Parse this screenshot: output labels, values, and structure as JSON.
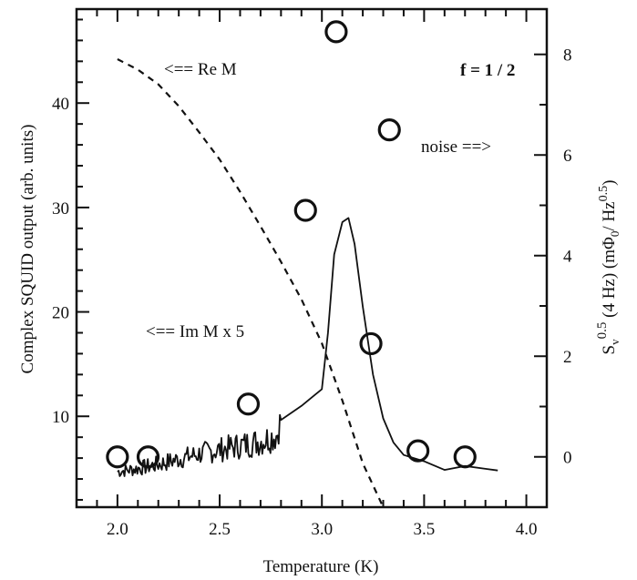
{
  "chart_data": {
    "type": "line",
    "xlabel": "Temperature   (K)",
    "ylabel_left": "Complex SQUID output (arb. units)",
    "ylabel_right": "S",
    "ylabel_right_parts": {
      "base": "S",
      "sub": "v",
      "sup": "0.5",
      "rest": "(4 Hz)  (m",
      "phi": "Φ",
      "phi_sub": "0",
      "slash": "/ Hz",
      "hz_sup": "0.5",
      "close": ")"
    },
    "xlim": [
      1.8,
      4.1
    ],
    "ylim_left": [
      1.3,
      49
    ],
    "ylim_right": [
      -1.0,
      8.9
    ],
    "x_ticks": [
      2.0,
      2.5,
      3.0,
      3.5,
      4.0
    ],
    "x_tick_labels": [
      "2.0",
      "2.5",
      "3.0",
      "3.5",
      "4.0"
    ],
    "y_left_ticks": [
      10,
      20,
      30,
      40
    ],
    "y_left_tick_labels": [
      "10",
      "20",
      "30",
      "40"
    ],
    "y_right_ticks": [
      0,
      2,
      4,
      6,
      8
    ],
    "y_right_tick_labels": [
      "0",
      "2",
      "4",
      "6",
      "8"
    ],
    "annotations": {
      "re_m": "<== Re M",
      "im_m": "<== Im M x 5",
      "noise": "noise ==>",
      "f": "f = 1 / 2"
    },
    "series": [
      {
        "style": "dashed",
        "axis": "left",
        "x": [
          2.0,
          2.1,
          2.2,
          2.3,
          2.4,
          2.5,
          2.6,
          2.7,
          2.8,
          2.9,
          3.0,
          3.1,
          3.2,
          3.3
        ],
        "y": [
          44.2,
          43.2,
          41.8,
          39.7,
          37.2,
          34.6,
          31.5,
          28.2,
          24.8,
          21.2,
          17.0,
          11.5,
          5.5,
          1.3
        ]
      },
      {
        "style": "solid",
        "axis": "left",
        "noisy_until": 2.8,
        "x": [
          2.0,
          2.1,
          2.2,
          2.3,
          2.4,
          2.5,
          2.6,
          2.7,
          2.78,
          2.8,
          2.9,
          2.95,
          3.0,
          3.03,
          3.06,
          3.1,
          3.13,
          3.16,
          3.2,
          3.25,
          3.3,
          3.35,
          3.4,
          3.5,
          3.6,
          3.7,
          3.8,
          3.86
        ],
        "y": [
          4.7,
          5.0,
          5.4,
          5.9,
          6.4,
          6.8,
          7.2,
          7.6,
          8.2,
          9.8,
          11.0,
          11.8,
          12.6,
          18.0,
          25.5,
          28.6,
          29.0,
          26.5,
          20.5,
          14.0,
          9.8,
          7.5,
          6.3,
          5.5,
          5.0,
          4.9,
          4.8,
          4.7
        ]
      },
      {
        "style": "markers",
        "axis": "right",
        "marker": "open-circle",
        "x": [
          2.0,
          2.15,
          2.64,
          2.92,
          3.07,
          3.33,
          3.24,
          3.47,
          3.7
        ],
        "y": [
          0.0,
          0.0,
          1.05,
          4.9,
          8.45,
          6.5,
          2.25,
          0.12,
          0.0
        ]
      }
    ]
  }
}
